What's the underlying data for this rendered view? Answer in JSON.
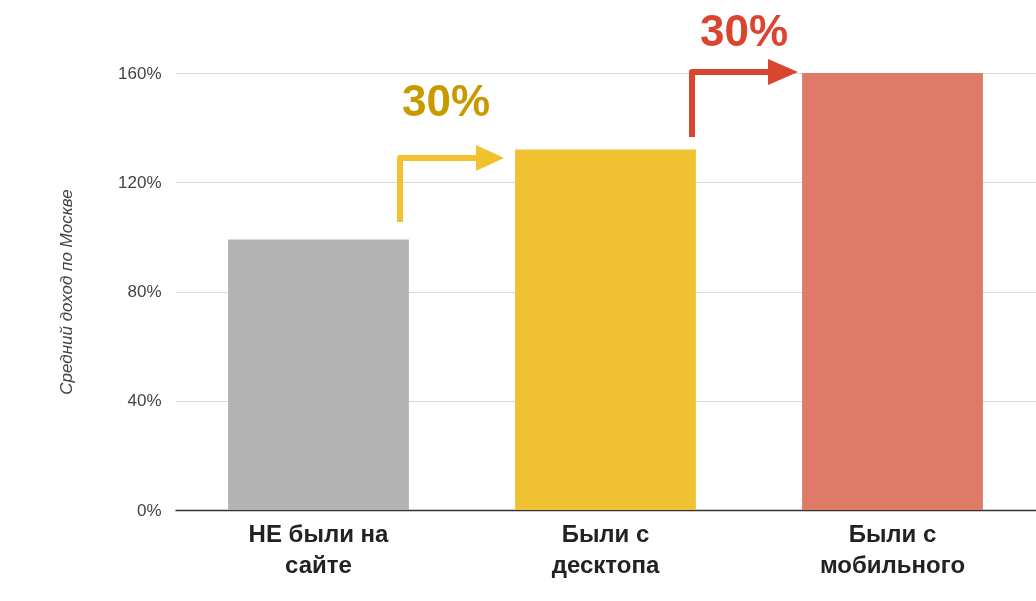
{
  "chart_data": {
    "type": "bar",
    "ylabel": "Средний доход по Москве",
    "categories": [
      "НЕ были на сайте",
      "Были с десктопа",
      "Были с мобильного"
    ],
    "values": [
      99,
      132,
      160
    ],
    "colors": [
      "#b3b3b3",
      "#f0c233",
      "#de7b67"
    ],
    "ylim": [
      0,
      160
    ],
    "yticks": [
      {
        "value": 0,
        "label": "0%"
      },
      {
        "value": 40,
        "label": "40%"
      },
      {
        "value": 80,
        "label": "80%"
      },
      {
        "value": 120,
        "label": "120%"
      },
      {
        "value": 160,
        "label": "160%"
      }
    ],
    "grid": "y",
    "legend": false,
    "annotations": [
      "30%",
      "30%"
    ]
  }
}
